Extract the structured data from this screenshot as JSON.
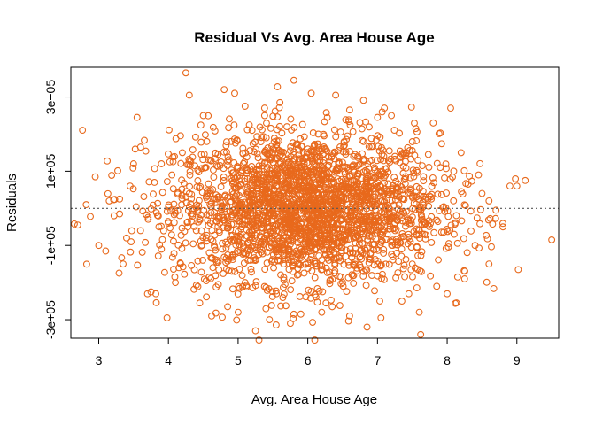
{
  "chart_data": {
    "type": "scatter",
    "title": "Residual Vs Avg. Area House Age",
    "xlabel": "Avg. Area House Age",
    "ylabel": "Residuals",
    "xlim": [
      2.6,
      9.6
    ],
    "ylim": [
      -350000,
      380000
    ],
    "x_ticks": [
      3,
      4,
      5,
      6,
      7,
      8,
      9
    ],
    "x_tick_labels": [
      "3",
      "4",
      "5",
      "6",
      "7",
      "8",
      "9"
    ],
    "y_ticks": [
      -300000,
      -100000,
      100000,
      300000
    ],
    "y_tick_labels": [
      "-3e+05",
      "-1e+05",
      "1e+05",
      "3e+05"
    ],
    "reference_line": {
      "y": 0,
      "style": "dotted",
      "color": "#555555"
    },
    "point_color": "#E8691C",
    "marker": "open-circle",
    "grid": false,
    "legend": "none",
    "series": [
      {
        "values": [
          [
            2.65,
            -42000
          ],
          [
            2.7,
            -45000
          ],
          [
            2.82,
            10000
          ],
          [
            2.88,
            -22000
          ],
          [
            2.95,
            85000
          ],
          [
            3.0,
            -100000
          ],
          [
            3.1,
            -115000
          ],
          [
            3.15,
            20000
          ],
          [
            3.22,
            -20000
          ],
          [
            3.3,
            25000
          ],
          [
            3.35,
            -150000
          ],
          [
            3.4,
            -80000
          ],
          [
            3.45,
            60000
          ],
          [
            3.55,
            245000
          ],
          [
            3.6,
            165000
          ],
          [
            3.7,
            -230000
          ],
          [
            3.75,
            -225000
          ],
          [
            3.82,
            -230000
          ],
          [
            3.9,
            120000
          ],
          [
            3.98,
            -295000
          ],
          [
            4.0,
            -40000
          ],
          [
            4.1,
            -200000
          ],
          [
            4.2,
            150000
          ],
          [
            4.25,
            365000
          ],
          [
            4.3,
            305000
          ],
          [
            4.45,
            -255000
          ],
          [
            4.5,
            250000
          ],
          [
            4.55,
            180000
          ],
          [
            4.62,
            -290000
          ],
          [
            4.8,
            320000
          ],
          [
            4.85,
            -265000
          ],
          [
            4.95,
            310000
          ],
          [
            5.0,
            -280000
          ],
          [
            5.1,
            275000
          ],
          [
            5.25,
            -330000
          ],
          [
            5.3,
            -355000
          ],
          [
            5.38,
            270000
          ],
          [
            5.45,
            -300000
          ],
          [
            5.6,
            285000
          ],
          [
            5.75,
            -310000
          ],
          [
            5.8,
            345000
          ],
          [
            5.9,
            -285000
          ],
          [
            6.05,
            310000
          ],
          [
            6.1,
            -355000
          ],
          [
            6.2,
            -280000
          ],
          [
            6.35,
            -265000
          ],
          [
            6.4,
            305000
          ],
          [
            6.6,
            265000
          ],
          [
            6.6,
            -290000
          ],
          [
            6.85,
            -320000
          ],
          [
            7.0,
            245000
          ],
          [
            7.05,
            -295000
          ],
          [
            7.1,
            270000
          ],
          [
            7.2,
            250000
          ],
          [
            7.35,
            -250000
          ],
          [
            7.45,
            -230000
          ],
          [
            7.55,
            215000
          ],
          [
            7.6,
            -280000
          ],
          [
            7.62,
            -340000
          ],
          [
            7.8,
            230000
          ],
          [
            7.85,
            -210000
          ],
          [
            8.0,
            -230000
          ],
          [
            8.05,
            270000
          ],
          [
            8.15,
            -185000
          ],
          [
            8.25,
            -190000
          ],
          [
            8.3,
            65000
          ],
          [
            8.4,
            -100000
          ],
          [
            8.5,
            40000
          ],
          [
            8.6,
            -150000
          ],
          [
            8.7,
            -5000
          ],
          [
            8.8,
            -50000
          ],
          [
            8.9,
            60000
          ],
          [
            9.0,
            60000
          ],
          [
            9.02,
            -165000
          ],
          [
            9.12,
            75000
          ],
          [
            9.5,
            -85000
          ],
          [
            3.3,
            -15000
          ],
          [
            3.5,
            120000
          ],
          [
            3.6,
            -60000
          ],
          [
            3.8,
            70000
          ],
          [
            3.9,
            -110000
          ],
          [
            4.05,
            90000
          ],
          [
            4.15,
            -160000
          ],
          [
            4.3,
            40000
          ],
          [
            4.4,
            -60000
          ],
          [
            4.6,
            130000
          ],
          [
            4.7,
            -140000
          ],
          [
            4.9,
            180000
          ],
          [
            5.0,
            60000
          ],
          [
            5.1,
            -200000
          ],
          [
            5.2,
            210000
          ],
          [
            5.35,
            -90000
          ],
          [
            5.5,
            160000
          ],
          [
            5.55,
            -230000
          ],
          [
            5.65,
            40000
          ],
          [
            5.7,
            220000
          ],
          [
            5.85,
            -180000
          ],
          [
            5.95,
            90000
          ],
          [
            6.0,
            -40000
          ],
          [
            6.15,
            200000
          ],
          [
            6.3,
            -140000
          ],
          [
            6.45,
            120000
          ],
          [
            6.5,
            -200000
          ],
          [
            6.7,
            60000
          ],
          [
            6.8,
            180000
          ],
          [
            6.9,
            -120000
          ],
          [
            7.1,
            -60000
          ],
          [
            7.25,
            140000
          ],
          [
            7.4,
            80000
          ],
          [
            7.5,
            -150000
          ],
          [
            7.7,
            30000
          ],
          [
            7.9,
            110000
          ],
          [
            8.1,
            -70000
          ],
          [
            8.2,
            150000
          ],
          [
            8.45,
            90000
          ],
          [
            8.6,
            20000
          ]
        ]
      }
    ]
  }
}
